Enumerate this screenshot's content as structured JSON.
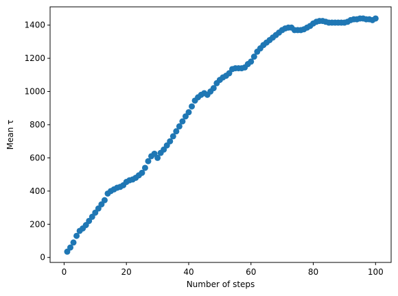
{
  "chart_data": {
    "type": "scatter",
    "title": "",
    "xlabel": "Number of steps",
    "ylabel": "Mean τ",
    "xlim": [
      -4.5,
      105
    ],
    "ylim": [
      -30,
      1510
    ],
    "xticks": [
      0,
      20,
      40,
      60,
      80,
      100
    ],
    "yticks": [
      0,
      200,
      400,
      600,
      800,
      1000,
      1200,
      1400
    ],
    "xtick_labels": [
      "0",
      "20",
      "40",
      "60",
      "80",
      "100"
    ],
    "ytick_labels": [
      "0",
      "200",
      "400",
      "600",
      "800",
      "1000",
      "1200",
      "1400"
    ],
    "grid": false,
    "legend": "none",
    "marker_color": "#1f77b4",
    "x": [
      1,
      2,
      3,
      4,
      5,
      6,
      7,
      8,
      9,
      10,
      11,
      12,
      13,
      14,
      15,
      16,
      17,
      18,
      19,
      20,
      21,
      22,
      23,
      24,
      25,
      26,
      27,
      28,
      29,
      30,
      31,
      32,
      33,
      34,
      35,
      36,
      37,
      38,
      39,
      40,
      41,
      42,
      43,
      44,
      45,
      46,
      47,
      48,
      49,
      50,
      51,
      52,
      53,
      54,
      55,
      56,
      57,
      58,
      59,
      60,
      61,
      62,
      63,
      64,
      65,
      66,
      67,
      68,
      69,
      70,
      71,
      72,
      73,
      74,
      75,
      76,
      77,
      78,
      79,
      80,
      81,
      82,
      83,
      84,
      85,
      86,
      87,
      88,
      89,
      90,
      91,
      92,
      93,
      94,
      95,
      96,
      97,
      98,
      99,
      100
    ],
    "y": [
      35,
      60,
      90,
      130,
      160,
      175,
      195,
      220,
      245,
      270,
      295,
      320,
      345,
      385,
      400,
      410,
      420,
      425,
      435,
      455,
      465,
      470,
      480,
      495,
      510,
      540,
      580,
      610,
      625,
      600,
      630,
      650,
      675,
      700,
      730,
      760,
      790,
      820,
      850,
      875,
      910,
      945,
      965,
      980,
      990,
      980,
      1000,
      1020,
      1050,
      1070,
      1085,
      1095,
      1110,
      1135,
      1140,
      1140,
      1140,
      1145,
      1165,
      1180,
      1210,
      1240,
      1260,
      1280,
      1295,
      1310,
      1325,
      1340,
      1355,
      1370,
      1380,
      1385,
      1385,
      1370,
      1370,
      1370,
      1375,
      1385,
      1395,
      1410,
      1420,
      1425,
      1425,
      1420,
      1415,
      1415,
      1415,
      1415,
      1415,
      1415,
      1420,
      1430,
      1435,
      1435,
      1440,
      1440,
      1435,
      1435,
      1430,
      1440
    ]
  }
}
